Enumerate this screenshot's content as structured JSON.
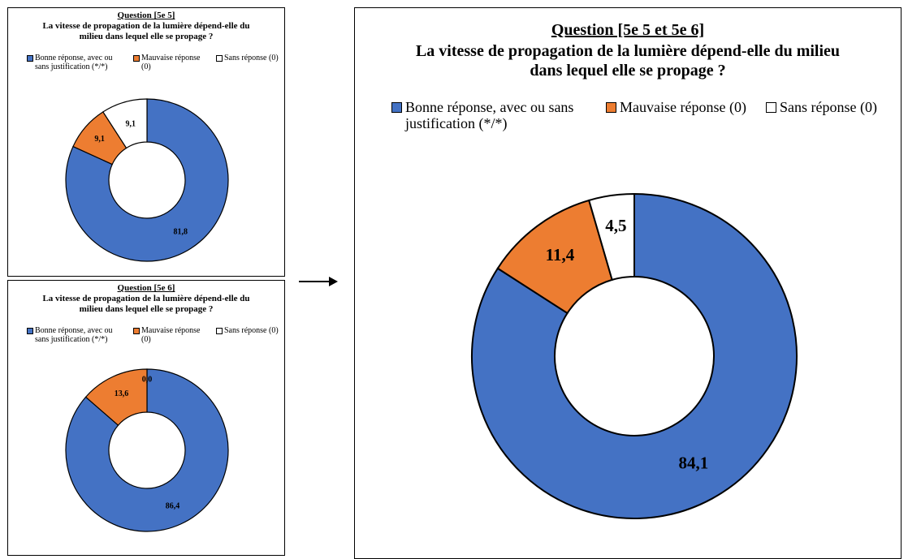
{
  "colors": {
    "good": "#4472C4",
    "bad": "#ED7D31",
    "none": "#FFFFFF",
    "stroke": "#000000"
  },
  "legend": {
    "good": "Bonne réponse, avec ou sans justification (*/*)",
    "bad": "Mauvaise réponse (0)",
    "none": "Sans réponse (0)"
  },
  "panels": {
    "top_left": {
      "title": "Question [5e 5]",
      "subtitle": "La vitesse de propagation de la lumière dépend-elle du milieu dans lequel elle se propage ?"
    },
    "bottom_left": {
      "title": "Question [5e 6]",
      "subtitle": "La vitesse de propagation de la lumière dépend-elle du milieu dans lequel elle se propage ?"
    },
    "right": {
      "title": "Question [5e 5 et 5e 6]",
      "subtitle": "La vitesse de propagation de la lumière dépend-elle du milieu dans lequel elle se propage ?"
    }
  },
  "chart_data": [
    {
      "type": "pie",
      "title": "Question [5e 5]",
      "subtitle": "La vitesse de propagation de la lumière dépend-elle du milieu dans lequel elle se propage ?",
      "categories": [
        "Bonne réponse, avec ou sans justification (*/*)",
        "Mauvaise réponse (0)",
        "Sans réponse (0)"
      ],
      "values": [
        81.8,
        9.1,
        9.1
      ],
      "labels": [
        "81,8",
        "9,1",
        "9,1"
      ],
      "legend": "top"
    },
    {
      "type": "pie",
      "title": "Question [5e 6]",
      "subtitle": "La vitesse de propagation de la lumière dépend-elle du milieu dans lequel elle se propage ?",
      "categories": [
        "Bonne réponse, avec ou sans justification (*/*)",
        "Mauvaise réponse (0)",
        "Sans réponse (0)"
      ],
      "values": [
        86.4,
        13.6,
        0.0
      ],
      "labels": [
        "86,4",
        "13,6",
        "0,0"
      ],
      "legend": "top"
    },
    {
      "type": "pie",
      "title": "Question [5e 5 et 5e 6]",
      "subtitle": "La vitesse de propagation de la lumière dépend-elle du milieu dans lequel elle se propage ?",
      "categories": [
        "Bonne réponse, avec ou sans justification (*/*)",
        "Mauvaise réponse (0)",
        "Sans réponse (0)"
      ],
      "values": [
        84.1,
        11.4,
        4.5
      ],
      "labels": [
        "84,1",
        "11,4",
        "4,5"
      ],
      "legend": "top"
    }
  ]
}
